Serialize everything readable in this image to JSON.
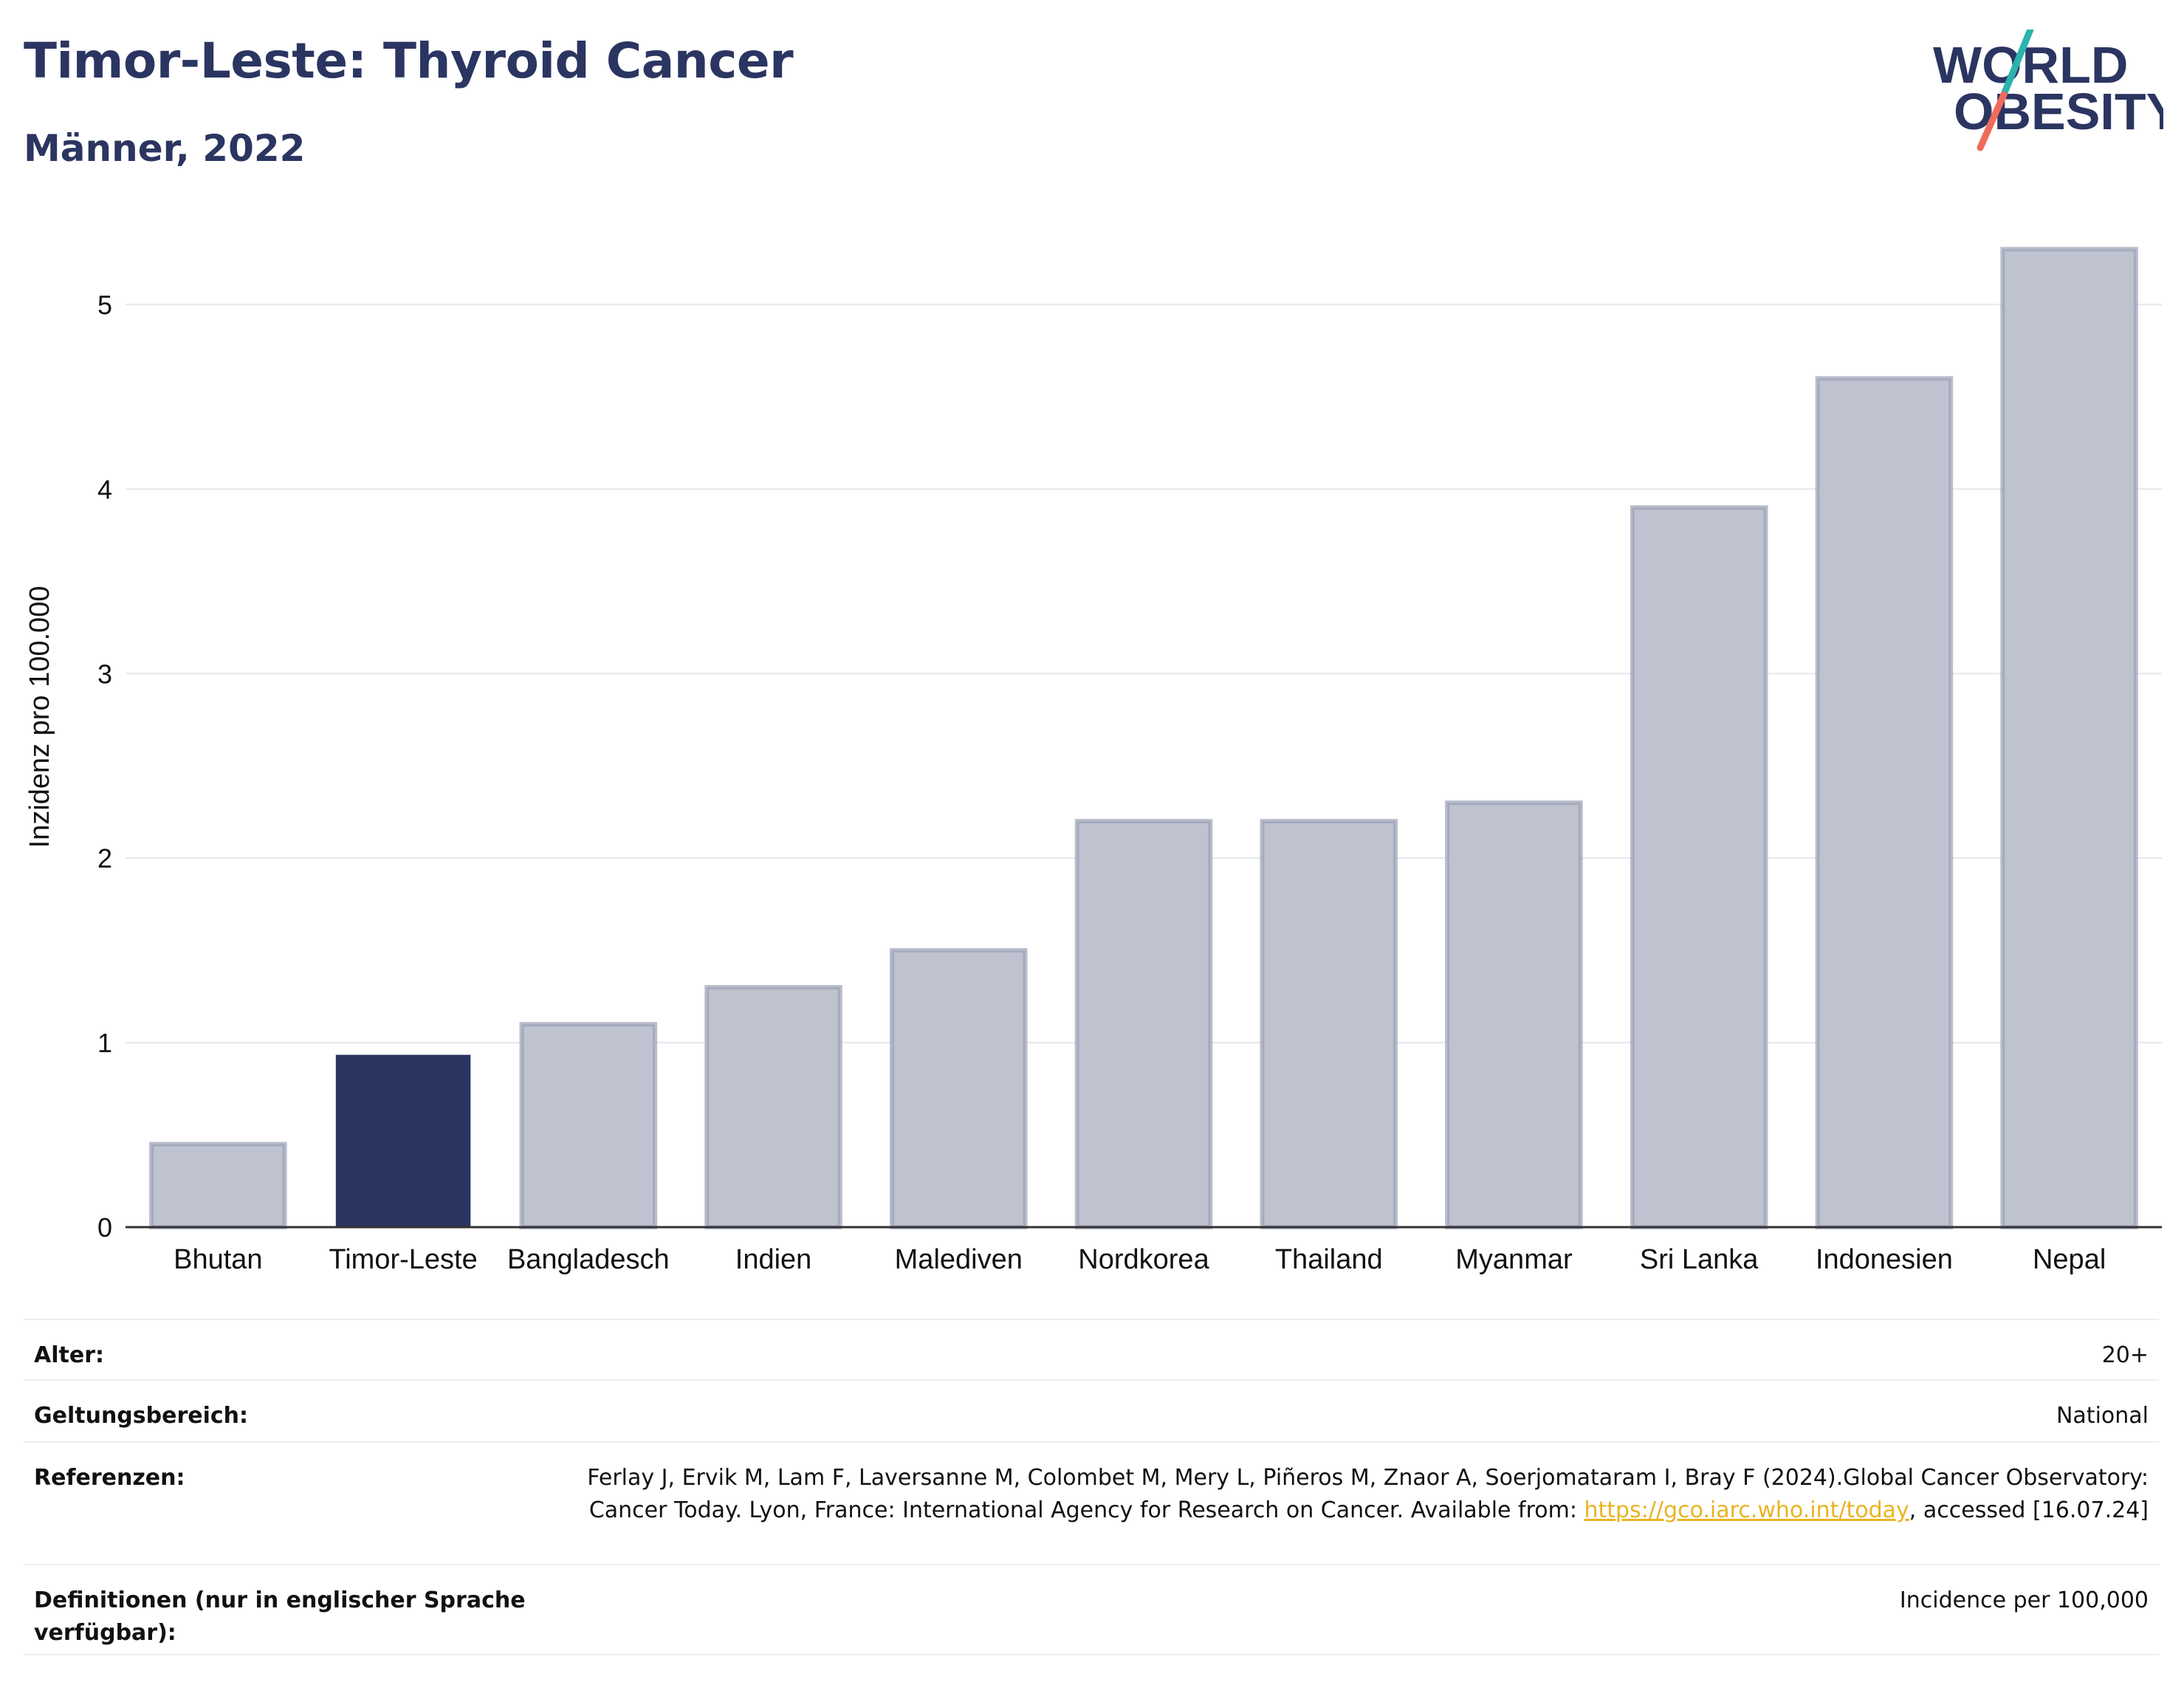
{
  "header": {
    "title": "Timor-Leste: Thyroid Cancer",
    "subtitle": "Männer, 2022",
    "logo_line1": "WORLD",
    "logo_line2": "OBESITY"
  },
  "chart_data": {
    "type": "bar",
    "title": "Timor-Leste: Thyroid Cancer",
    "subtitle": "Männer, 2022",
    "ylabel": "Inzidenz pro 100.000",
    "xlabel": "",
    "ylim": [
      0,
      5.45
    ],
    "yticks": [
      0,
      1,
      2,
      3,
      4,
      5
    ],
    "grid": true,
    "categories": [
      "Bhutan",
      "Timor-Leste",
      "Bangladesch",
      "Indien",
      "Malediven",
      "Nordkorea",
      "Thailand",
      "Myanmar",
      "Sri Lanka",
      "Indonesien",
      "Nepal"
    ],
    "values": [
      0.45,
      0.93,
      1.1,
      1.3,
      1.5,
      2.2,
      2.2,
      2.3,
      3.9,
      4.6,
      5.3
    ],
    "highlight": "Timor-Leste",
    "colors": {
      "highlight": "#2b3561",
      "default": "#bfc3cf",
      "default_edge": "#9aa0b5",
      "axis": "#333333",
      "grid": "#e6e7ec"
    }
  },
  "meta": {
    "rows": [
      {
        "key": "Alter:",
        "value": "20+"
      },
      {
        "key": "Geltungsbereich:",
        "value": "National"
      },
      {
        "key": "Referenzen:",
        "value_pre": "Ferlay J, Ervik M, Lam F, Laversanne M, Colombet M, Mery L, Piñeros M, Znaor A, Soerjomataram I, Bray F (2024).Global Cancer Observatory: Cancer Today. Lyon, France: International Agency for Research on Cancer. Available from: ",
        "link": "https://gco.iarc.who.int/today",
        "value_post": ", accessed [16.07.24]"
      },
      {
        "key": "Definitionen (nur in englischer Sprache verfügbar):",
        "value": "Incidence per 100,000"
      }
    ]
  }
}
